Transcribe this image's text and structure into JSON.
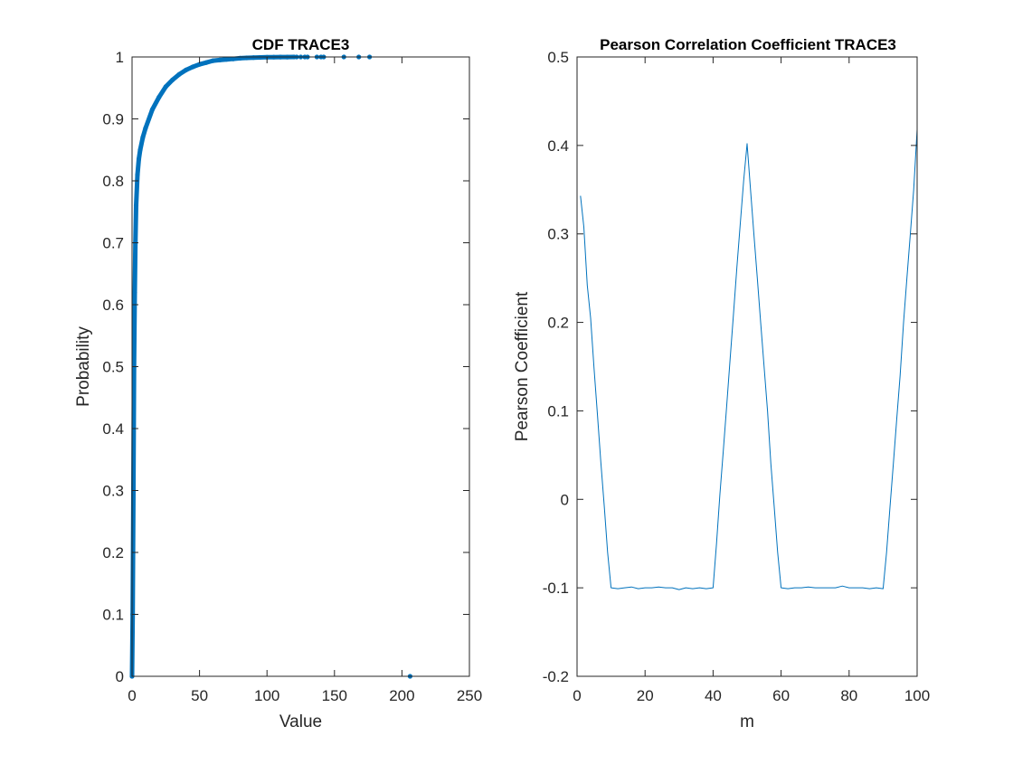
{
  "figure": {
    "background": "#ffffff",
    "axis_color": "#262626",
    "series_color": "#0072BD"
  },
  "chart_data": [
    {
      "type": "scatter",
      "title": "CDF TRACE3",
      "xlabel": "Value",
      "ylabel": "Probability",
      "xlim": [
        0,
        250
      ],
      "ylim": [
        0,
        1
      ],
      "xticks": [
        0,
        50,
        100,
        150,
        200,
        250
      ],
      "yticks": [
        0,
        0.1,
        0.2,
        0.3,
        0.4,
        0.5,
        0.6,
        0.7,
        0.8,
        0.9,
        1
      ],
      "xtick_labels": [
        "0",
        "50",
        "100",
        "150",
        "200",
        "250"
      ],
      "ytick_labels": [
        "0",
        "0.1",
        "0.2",
        "0.3",
        "0.4",
        "0.5",
        "0.6",
        "0.7",
        "0.8",
        "0.9",
        "1"
      ],
      "grid": false,
      "marker": "dot",
      "color": "#0072BD",
      "points": [
        [
          0,
          0
        ],
        [
          0.5,
          0.1
        ],
        [
          1,
          0.3
        ],
        [
          1.5,
          0.5
        ],
        [
          2,
          0.62
        ],
        [
          2.5,
          0.7
        ],
        [
          3,
          0.76
        ],
        [
          4,
          0.81
        ],
        [
          5,
          0.835
        ],
        [
          6,
          0.85
        ],
        [
          8,
          0.87
        ],
        [
          10,
          0.885
        ],
        [
          15,
          0.915
        ],
        [
          20,
          0.935
        ],
        [
          25,
          0.952
        ],
        [
          30,
          0.963
        ],
        [
          35,
          0.972
        ],
        [
          40,
          0.979
        ],
        [
          45,
          0.984
        ],
        [
          50,
          0.988
        ],
        [
          55,
          0.991
        ],
        [
          60,
          0.994
        ],
        [
          65,
          0.995
        ],
        [
          70,
          0.996
        ],
        [
          75,
          0.997
        ],
        [
          80,
          0.998
        ],
        [
          85,
          0.9985
        ],
        [
          90,
          0.999
        ],
        [
          95,
          0.9993
        ],
        [
          100,
          0.9995
        ],
        [
          105,
          0.9997
        ],
        [
          110,
          0.9998
        ],
        [
          115,
          0.9999
        ],
        [
          120,
          1
        ],
        [
          122,
          1
        ],
        [
          125,
          1
        ],
        [
          128,
          1
        ],
        [
          130,
          1
        ],
        [
          137,
          1
        ],
        [
          140,
          1
        ],
        [
          142,
          1
        ],
        [
          157,
          1
        ],
        [
          168,
          1
        ],
        [
          176,
          1
        ],
        [
          206,
          0
        ]
      ]
    },
    {
      "type": "line",
      "title": "Pearson Correlation Coefficient TRACE3",
      "xlabel": "m",
      "ylabel": "Pearson Coefficient",
      "xlim": [
        0,
        100
      ],
      "ylim": [
        -0.2,
        0.5
      ],
      "xticks": [
        0,
        20,
        40,
        60,
        80,
        100
      ],
      "yticks": [
        -0.2,
        -0.1,
        0,
        0.1,
        0.2,
        0.3,
        0.4,
        0.5
      ],
      "xtick_labels": [
        "0",
        "20",
        "40",
        "60",
        "80",
        "100"
      ],
      "ytick_labels": [
        "-0.2",
        "-0.1",
        "0",
        "0.1",
        "0.2",
        "0.3",
        "0.4",
        "0.5"
      ],
      "grid": false,
      "color": "#0072BD",
      "points": [
        [
          1,
          0.343
        ],
        [
          2,
          0.308
        ],
        [
          3,
          0.242
        ],
        [
          4,
          0.205
        ],
        [
          5,
          0.148
        ],
        [
          6,
          0.095
        ],
        [
          7,
          0.042
        ],
        [
          8,
          -0.008
        ],
        [
          9,
          -0.06
        ],
        [
          10,
          -0.1
        ],
        [
          12,
          -0.101
        ],
        [
          14,
          -0.1
        ],
        [
          16,
          -0.099
        ],
        [
          18,
          -0.101
        ],
        [
          20,
          -0.1
        ],
        [
          22,
          -0.1
        ],
        [
          24,
          -0.099
        ],
        [
          26,
          -0.1
        ],
        [
          28,
          -0.1
        ],
        [
          30,
          -0.102
        ],
        [
          32,
          -0.1
        ],
        [
          34,
          -0.101
        ],
        [
          36,
          -0.1
        ],
        [
          38,
          -0.101
        ],
        [
          40,
          -0.1
        ],
        [
          41,
          -0.05
        ],
        [
          42,
          0.005
        ],
        [
          43,
          0.055
        ],
        [
          44,
          0.105
        ],
        [
          45,
          0.158
        ],
        [
          46,
          0.21
        ],
        [
          47,
          0.262
        ],
        [
          48,
          0.312
        ],
        [
          49,
          0.36
        ],
        [
          50,
          0.402
        ],
        [
          51,
          0.35
        ],
        [
          52,
          0.3
        ],
        [
          53,
          0.25
        ],
        [
          54,
          0.2
        ],
        [
          55,
          0.15
        ],
        [
          56,
          0.1
        ],
        [
          57,
          0.04
        ],
        [
          58,
          -0.01
        ],
        [
          59,
          -0.06
        ],
        [
          60,
          -0.1
        ],
        [
          62,
          -0.101
        ],
        [
          64,
          -0.1
        ],
        [
          66,
          -0.1
        ],
        [
          68,
          -0.099
        ],
        [
          70,
          -0.1
        ],
        [
          72,
          -0.1
        ],
        [
          74,
          -0.1
        ],
        [
          76,
          -0.1
        ],
        [
          78,
          -0.098
        ],
        [
          80,
          -0.1
        ],
        [
          82,
          -0.1
        ],
        [
          84,
          -0.1
        ],
        [
          86,
          -0.101
        ],
        [
          88,
          -0.1
        ],
        [
          90,
          -0.101
        ],
        [
          91,
          -0.06
        ],
        [
          92,
          -0.01
        ],
        [
          93,
          0.04
        ],
        [
          94,
          0.09
        ],
        [
          95,
          0.14
        ],
        [
          96,
          0.2
        ],
        [
          97,
          0.25
        ],
        [
          98,
          0.3
        ],
        [
          99,
          0.35
        ],
        [
          100,
          0.418
        ]
      ]
    }
  ]
}
